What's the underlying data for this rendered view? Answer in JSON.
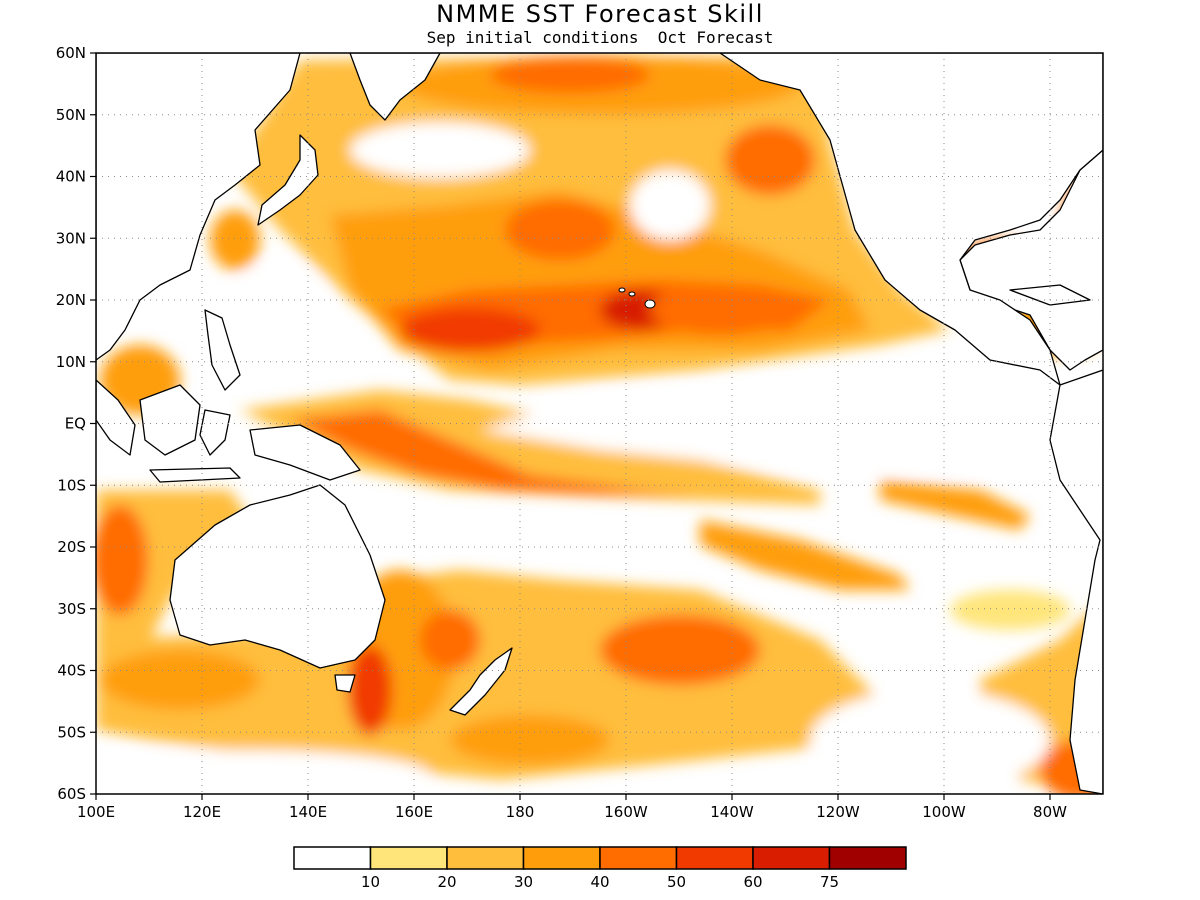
{
  "title": "NMME SST Forecast Skill",
  "subtitle": "Sep initial conditions  Oct Forecast",
  "map": {
    "projection": "cylindrical equidistant",
    "lon_range": [
      "100E",
      "70W"
    ],
    "lat_range": [
      "60S",
      "60N"
    ],
    "grid": "dotted",
    "y_tick_labels": [
      "60N",
      "50N",
      "40N",
      "30N",
      "20N",
      "10N",
      "EQ",
      "10S",
      "20S",
      "30S",
      "40S",
      "50S",
      "60S"
    ],
    "x_tick_labels": [
      "100E",
      "120E",
      "140E",
      "160E",
      "180",
      "160W",
      "140W",
      "120W",
      "100W",
      "80W"
    ]
  },
  "colorbar": {
    "colors": [
      "#ffffff",
      "#ffe57a",
      "#ffbe3c",
      "#ff9e0a",
      "#ff6c00",
      "#f13a00",
      "#d81d00",
      "#a10000"
    ],
    "labels": [
      "10",
      "20",
      "30",
      "40",
      "50",
      "60",
      "75"
    ]
  }
}
